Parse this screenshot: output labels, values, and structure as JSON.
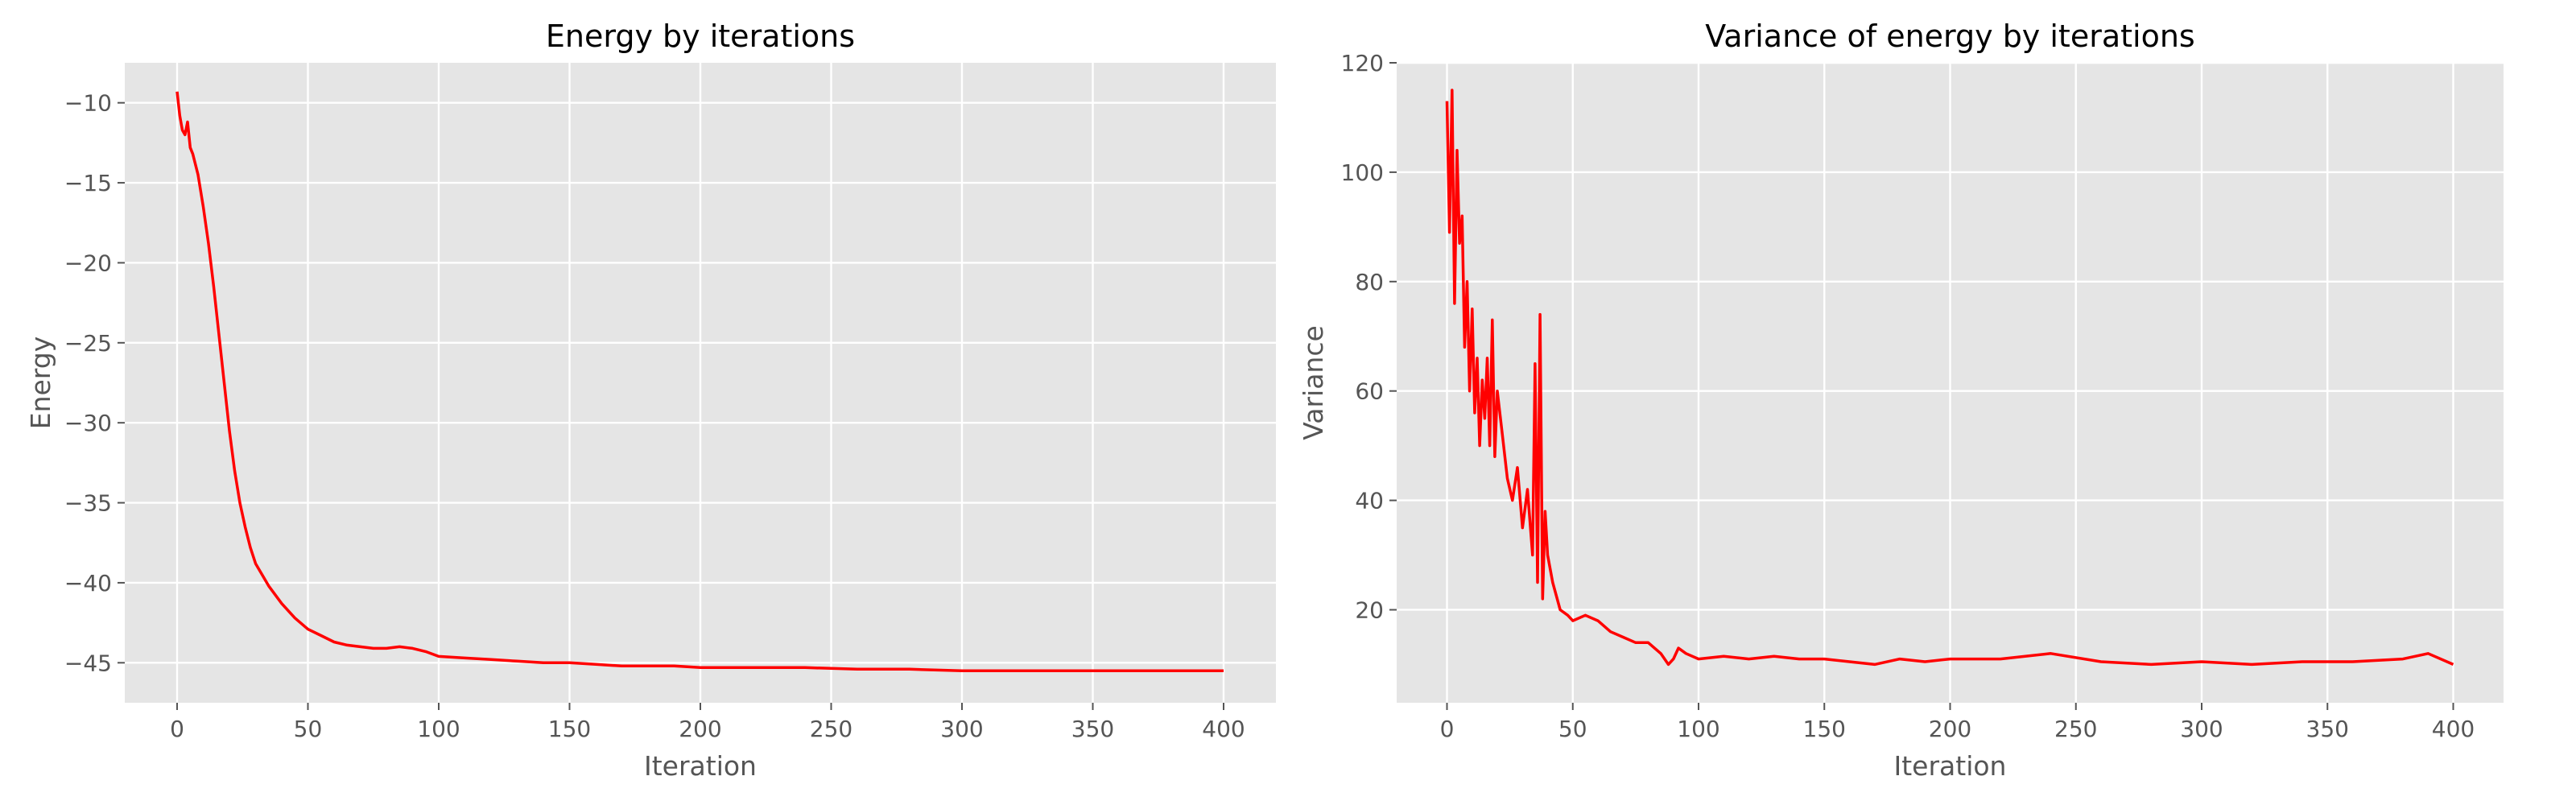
{
  "chart_data": [
    {
      "type": "line",
      "title": "Energy by iterations",
      "xlabel": "Iteration",
      "ylabel": "Energy",
      "xlim": [
        -20,
        420
      ],
      "ylim": [
        -47.5,
        -7.5
      ],
      "xticks": [
        0,
        50,
        100,
        150,
        200,
        250,
        300,
        350,
        400
      ],
      "yticks": [
        -45,
        -40,
        -35,
        -30,
        -25,
        -20,
        -15,
        -10
      ],
      "xtick_labels": [
        "0",
        "50",
        "100",
        "150",
        "200",
        "250",
        "300",
        "350",
        "400"
      ],
      "ytick_labels": [
        "−45",
        "−40",
        "−35",
        "−30",
        "−25",
        "−20",
        "−15",
        "−10"
      ],
      "grid": true,
      "background": "#E5E5E5",
      "line_color": "#FF0000",
      "series": [
        {
          "x": [
            0,
            1,
            2,
            3,
            4,
            5,
            6,
            8,
            10,
            12,
            14,
            16,
            18,
            20,
            22,
            24,
            26,
            28,
            30,
            35,
            40,
            45,
            50,
            55,
            60,
            65,
            70,
            75,
            80,
            85,
            90,
            95,
            100,
            110,
            120,
            130,
            140,
            150,
            160,
            170,
            180,
            190,
            200,
            220,
            240,
            260,
            280,
            300,
            320,
            340,
            360,
            380,
            400
          ],
          "values": [
            -9.3,
            -10.8,
            -11.7,
            -12.0,
            -11.2,
            -12.8,
            -13.2,
            -14.5,
            -16.5,
            -18.8,
            -21.5,
            -24.5,
            -27.5,
            -30.5,
            -33.0,
            -35.0,
            -36.5,
            -37.8,
            -38.8,
            -40.2,
            -41.3,
            -42.2,
            -42.9,
            -43.3,
            -43.7,
            -43.9,
            -44.0,
            -44.1,
            -44.1,
            -44.0,
            -44.1,
            -44.3,
            -44.6,
            -44.7,
            -44.8,
            -44.9,
            -45.0,
            -45.0,
            -45.1,
            -45.2,
            -45.2,
            -45.2,
            -45.3,
            -45.3,
            -45.3,
            -45.4,
            -45.4,
            -45.5,
            -45.5,
            -45.5,
            -45.5,
            -45.5,
            -45.5
          ]
        }
      ]
    },
    {
      "type": "line",
      "title": "Variance of energy by iterations",
      "xlabel": "Iteration",
      "ylabel": "Variance",
      "xlim": [
        -20,
        420
      ],
      "ylim": [
        3,
        120
      ],
      "xticks": [
        0,
        50,
        100,
        150,
        200,
        250,
        300,
        350,
        400
      ],
      "yticks": [
        20,
        40,
        60,
        80,
        100,
        120
      ],
      "xtick_labels": [
        "0",
        "50",
        "100",
        "150",
        "200",
        "250",
        "300",
        "350",
        "400"
      ],
      "ytick_labels": [
        "20",
        "40",
        "60",
        "80",
        "100",
        "120"
      ],
      "grid": true,
      "background": "#E5E5E5",
      "line_color": "#FF0000",
      "series": [
        {
          "x": [
            0,
            1,
            2,
            3,
            4,
            5,
            6,
            7,
            8,
            9,
            10,
            11,
            12,
            13,
            14,
            15,
            16,
            17,
            18,
            19,
            20,
            22,
            24,
            26,
            28,
            30,
            32,
            34,
            35,
            36,
            37,
            38,
            39,
            40,
            42,
            45,
            48,
            50,
            55,
            60,
            65,
            70,
            75,
            80,
            85,
            88,
            90,
            92,
            95,
            100,
            110,
            120,
            130,
            140,
            150,
            160,
            170,
            180,
            190,
            200,
            220,
            240,
            260,
            280,
            300,
            320,
            340,
            360,
            380,
            390,
            400
          ],
          "values": [
            113,
            89,
            115,
            76,
            104,
            87,
            92,
            68,
            80,
            60,
            75,
            56,
            66,
            50,
            62,
            55,
            66,
            50,
            73,
            48,
            60,
            52,
            44,
            40,
            46,
            35,
            42,
            30,
            65,
            25,
            74,
            22,
            38,
            30,
            25,
            20,
            19,
            18,
            19,
            18,
            16,
            15,
            14,
            14,
            12,
            10,
            11,
            13,
            12,
            11,
            11.5,
            11,
            11.5,
            11,
            11,
            10.5,
            10,
            11,
            10.5,
            11,
            11,
            12,
            10.5,
            10,
            10.5,
            10,
            10.5,
            10.5,
            11,
            12,
            10
          ]
        }
      ]
    }
  ]
}
